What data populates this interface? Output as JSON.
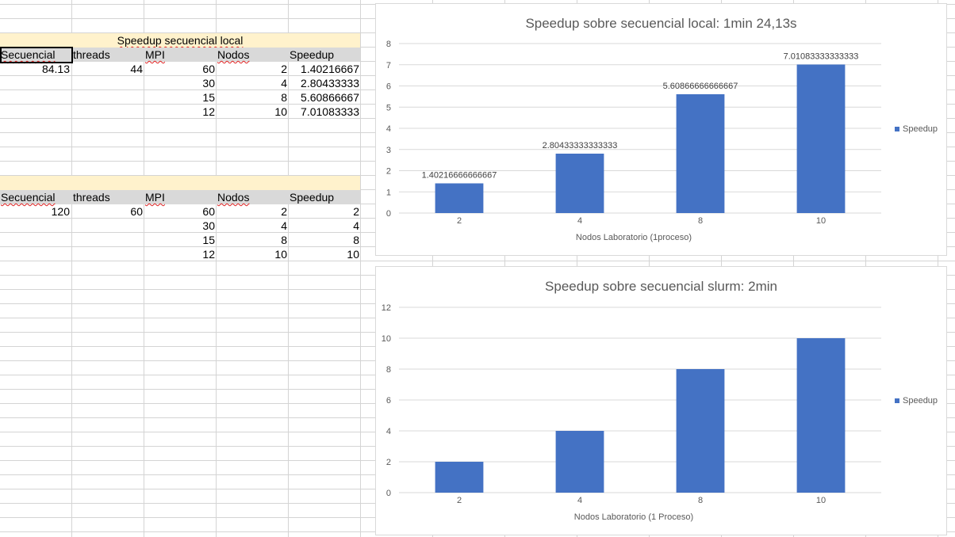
{
  "sheet": {
    "table1": {
      "title": "Speedup secuencial local",
      "headers": [
        "Secuencial",
        "threads",
        "MPI",
        "Nodos",
        "Speedup"
      ],
      "secuencial": "84.13",
      "threads": "44",
      "rows": [
        {
          "mpi": "60",
          "nodos": "2",
          "speedup": "1.40216667"
        },
        {
          "mpi": "30",
          "nodos": "4",
          "speedup": "2.80433333"
        },
        {
          "mpi": "15",
          "nodos": "8",
          "speedup": "5.60866667"
        },
        {
          "mpi": "12",
          "nodos": "10",
          "speedup": "7.01083333"
        }
      ]
    },
    "table2": {
      "headers": [
        "Secuencial",
        "threads",
        "MPI",
        "Nodos",
        "Speedup"
      ],
      "secuencial": "120",
      "threads": "60",
      "rows": [
        {
          "mpi": "60",
          "nodos": "2",
          "speedup": "2"
        },
        {
          "mpi": "30",
          "nodos": "4",
          "speedup": "4"
        },
        {
          "mpi": "15",
          "nodos": "8",
          "speedup": "8"
        },
        {
          "mpi": "12",
          "nodos": "10",
          "speedup": "10"
        }
      ]
    },
    "colors": {
      "header_band": "#fff2cc",
      "header_row": "#d9d9d9",
      "gridline": "#d4d4d4",
      "bar": "#4472c4"
    }
  },
  "chart_data": [
    {
      "type": "bar",
      "title": "Speedup sobre secuencial local: 1min 24,13s",
      "xlabel": "Nodos Laboratorio (1proceso)",
      "ylabel": "",
      "categories": [
        "2",
        "4",
        "8",
        "10"
      ],
      "series": [
        {
          "name": "Speedup",
          "values": [
            1.40216666666667,
            2.80433333333333,
            5.60866666666667,
            7.01083333333333
          ]
        }
      ],
      "data_labels": [
        "1.40216666666667",
        "2.80433333333333",
        "5.60866666666667",
        "7.01083333333333"
      ],
      "ylim": [
        0,
        8
      ],
      "yticks": [
        0,
        1,
        2,
        3,
        4,
        5,
        6,
        7,
        8
      ],
      "grid": true,
      "legend": "right"
    },
    {
      "type": "bar",
      "title": "Speedup sobre secuencial slurm: 2min",
      "xlabel": "Nodos Laboratorio (1 Proceso)",
      "ylabel": "",
      "categories": [
        "2",
        "4",
        "8",
        "10"
      ],
      "series": [
        {
          "name": "Speedup",
          "values": [
            2,
            4,
            8,
            10
          ]
        }
      ],
      "data_labels": [],
      "ylim": [
        0,
        12
      ],
      "yticks": [
        0,
        2,
        4,
        6,
        8,
        10,
        12
      ],
      "grid": true,
      "legend": "right"
    }
  ]
}
